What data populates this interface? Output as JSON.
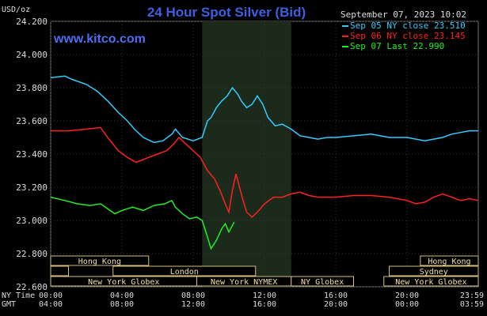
{
  "chart_data": {
    "type": "line",
    "title": "24 Hour Spot Silver (Bid)",
    "unit_label": "USD/oz",
    "watermark": "www.kitco.com",
    "timestamp": "September 07, 2023 10:02",
    "ylim": [
      22.6,
      24.2
    ],
    "y_ticks": [
      "24.200",
      "24.000",
      "23.800",
      "23.600",
      "23.400",
      "23.200",
      "23.000",
      "22.800",
      "22.600"
    ],
    "x_time_rows": [
      {
        "label": "NY Time",
        "ticks": [
          "00:00",
          "04:00",
          "08:00",
          "12:00",
          "16:00",
          "20:00",
          "23:59"
        ]
      },
      {
        "label": "GMT",
        "ticks": [
          "04:00",
          "08:00",
          "12:00",
          "16:00",
          "20:00",
          "00:00",
          "03:59"
        ]
      }
    ],
    "x_hours": [
      0,
      4,
      8,
      12,
      16,
      20,
      23.983
    ],
    "highlight_hours": [
      8.5,
      13.5
    ],
    "grid": true,
    "legend_position": "top-right",
    "series": [
      {
        "name": "Sep 05 NY close 23.510",
        "color": "#33ccff",
        "points": [
          [
            0,
            23.86
          ],
          [
            0.8,
            23.87
          ],
          [
            1.2,
            23.85
          ],
          [
            2.0,
            23.82
          ],
          [
            2.6,
            23.78
          ],
          [
            3.2,
            23.72
          ],
          [
            3.8,
            23.65
          ],
          [
            4.3,
            23.6
          ],
          [
            4.7,
            23.55
          ],
          [
            5.2,
            23.5
          ],
          [
            5.8,
            23.47
          ],
          [
            6.3,
            23.48
          ],
          [
            6.8,
            23.52
          ],
          [
            7.0,
            23.55
          ],
          [
            7.4,
            23.5
          ],
          [
            8.0,
            23.48
          ],
          [
            8.5,
            23.5
          ],
          [
            8.8,
            23.6
          ],
          [
            9.0,
            23.62
          ],
          [
            9.3,
            23.68
          ],
          [
            9.6,
            23.72
          ],
          [
            9.9,
            23.75
          ],
          [
            10.2,
            23.8
          ],
          [
            10.5,
            23.76
          ],
          [
            10.7,
            23.72
          ],
          [
            11.0,
            23.68
          ],
          [
            11.3,
            23.7
          ],
          [
            11.6,
            23.75
          ],
          [
            11.9,
            23.7
          ],
          [
            12.2,
            23.62
          ],
          [
            12.6,
            23.57
          ],
          [
            13.0,
            23.58
          ],
          [
            13.5,
            23.55
          ],
          [
            14.0,
            23.51
          ],
          [
            14.5,
            23.5
          ],
          [
            15.0,
            23.49
          ],
          [
            15.5,
            23.5
          ],
          [
            16.0,
            23.5
          ],
          [
            17.0,
            23.51
          ],
          [
            18.0,
            23.52
          ],
          [
            19.0,
            23.5
          ],
          [
            20.0,
            23.5
          ],
          [
            21.0,
            23.48
          ],
          [
            21.5,
            23.49
          ],
          [
            22.0,
            23.5
          ],
          [
            22.5,
            23.52
          ],
          [
            23.0,
            23.53
          ],
          [
            23.5,
            23.54
          ],
          [
            24.0,
            23.54
          ]
        ]
      },
      {
        "name": "Sep 06 NY close 23.145",
        "color": "#ff2020",
        "points": [
          [
            0,
            23.54
          ],
          [
            1.0,
            23.54
          ],
          [
            2.0,
            23.55
          ],
          [
            2.8,
            23.56
          ],
          [
            3.2,
            23.5
          ],
          [
            3.8,
            23.42
          ],
          [
            4.3,
            23.38
          ],
          [
            4.8,
            23.35
          ],
          [
            5.5,
            23.38
          ],
          [
            6.0,
            23.4
          ],
          [
            6.5,
            23.42
          ],
          [
            6.9,
            23.46
          ],
          [
            7.2,
            23.5
          ],
          [
            7.6,
            23.46
          ],
          [
            8.0,
            23.42
          ],
          [
            8.4,
            23.38
          ],
          [
            8.8,
            23.3
          ],
          [
            9.2,
            23.25
          ],
          [
            9.5,
            23.18
          ],
          [
            9.8,
            23.1
          ],
          [
            10.0,
            23.05
          ],
          [
            10.2,
            23.18
          ],
          [
            10.4,
            23.28
          ],
          [
            10.6,
            23.2
          ],
          [
            10.8,
            23.12
          ],
          [
            11.0,
            23.05
          ],
          [
            11.3,
            23.02
          ],
          [
            11.6,
            23.05
          ],
          [
            12.0,
            23.1
          ],
          [
            12.5,
            23.14
          ],
          [
            13.0,
            23.14
          ],
          [
            13.5,
            23.16
          ],
          [
            14.0,
            23.17
          ],
          [
            14.5,
            23.15
          ],
          [
            15.0,
            23.14
          ],
          [
            16.0,
            23.14
          ],
          [
            17.0,
            23.15
          ],
          [
            18.0,
            23.15
          ],
          [
            19.0,
            23.14
          ],
          [
            20.0,
            23.12
          ],
          [
            20.5,
            23.1
          ],
          [
            21.0,
            23.11
          ],
          [
            21.5,
            23.14
          ],
          [
            22.0,
            23.16
          ],
          [
            22.5,
            23.14
          ],
          [
            23.0,
            23.12
          ],
          [
            23.5,
            23.13
          ],
          [
            24.0,
            23.12
          ]
        ]
      },
      {
        "name": "Sep 07 Last 22.990",
        "color": "#22ee22",
        "points": [
          [
            0,
            23.14
          ],
          [
            0.8,
            23.12
          ],
          [
            1.5,
            23.1
          ],
          [
            2.2,
            23.09
          ],
          [
            2.8,
            23.1
          ],
          [
            3.2,
            23.07
          ],
          [
            3.6,
            23.04
          ],
          [
            4.0,
            23.06
          ],
          [
            4.6,
            23.08
          ],
          [
            5.2,
            23.06
          ],
          [
            5.8,
            23.09
          ],
          [
            6.4,
            23.1
          ],
          [
            6.8,
            23.12
          ],
          [
            7.0,
            23.08
          ],
          [
            7.4,
            23.04
          ],
          [
            7.8,
            23.01
          ],
          [
            8.2,
            23.02
          ],
          [
            8.5,
            23.0
          ],
          [
            8.8,
            22.9
          ],
          [
            9.0,
            22.83
          ],
          [
            9.3,
            22.88
          ],
          [
            9.6,
            22.95
          ],
          [
            9.8,
            22.98
          ],
          [
            10.0,
            22.93
          ],
          [
            10.2,
            22.97
          ],
          [
            10.3,
            22.99
          ]
        ]
      }
    ],
    "sessions": [
      {
        "label": "Hong Kong",
        "start": 0,
        "end": 5.5,
        "row": 0
      },
      {
        "label": "Hong Kong",
        "start": 20.75,
        "end": 24,
        "row": 0
      },
      {
        "label": "London",
        "start": 3.5,
        "end": 11.5,
        "row": 1
      },
      {
        "label": "",
        "start": 0,
        "end": 1.0,
        "row": 1
      },
      {
        "label": "Sydney",
        "start": 19.0,
        "end": 24,
        "row": 1
      },
      {
        "label": "New York Globex",
        "start": 0,
        "end": 8.2,
        "row": 2
      },
      {
        "label": "New York NYMEX",
        "start": 8.2,
        "end": 13.5,
        "row": 2
      },
      {
        "label": "NY Globex",
        "start": 13.5,
        "end": 17.0,
        "row": 2
      },
      {
        "label": "New York Globex",
        "start": 18.7,
        "end": 24,
        "row": 2
      }
    ]
  }
}
